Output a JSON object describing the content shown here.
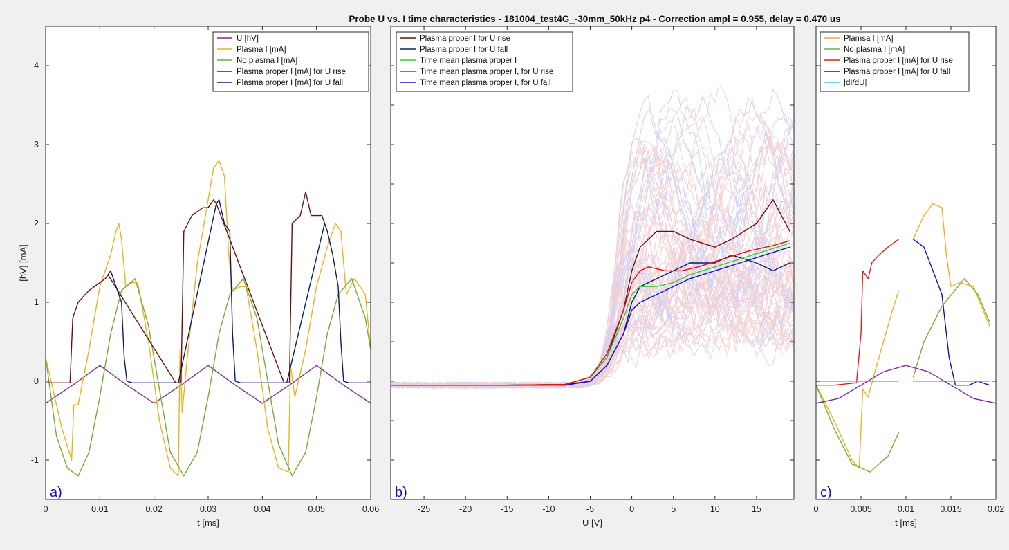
{
  "figure": {
    "title": "Probe U vs. I time characteristics - 181004_test4G_-30mm_50kHz p4 - Correction ampl = 0.955, delay = 0.470 us"
  },
  "chart_data": [
    {
      "panel_label": "a)",
      "type": "line",
      "xlabel": "t [ms]",
      "ylabel": "[hV] [mA]",
      "xlim": [
        0,
        0.06
      ],
      "ylim": [
        -1.5,
        4.5
      ],
      "xticks": [
        "0",
        "0.01",
        "0.02",
        "0.03",
        "0.04",
        "0.05",
        "0.06"
      ],
      "yticks": [
        "-1",
        "0",
        "1",
        "2",
        "3",
        "4"
      ],
      "legend_placement": "top-right",
      "grid": false,
      "series": [
        {
          "name": "U [hV]",
          "color": "#7e2f8e",
          "x": [
            0,
            0.005,
            0.01,
            0.015,
            0.02,
            0.025,
            0.03,
            0.035,
            0.04,
            0.045,
            0.05,
            0.055,
            0.06
          ],
          "y": [
            -0.28,
            -0.05,
            0.2,
            -0.05,
            -0.28,
            -0.05,
            0.2,
            -0.05,
            -0.28,
            -0.05,
            0.2,
            -0.05,
            -0.28
          ]
        },
        {
          "name": "Plasma I [mA]",
          "color": "#edb120",
          "x": [
            0,
            0.003,
            0.0048,
            0.0052,
            0.006,
            0.008,
            0.01,
            0.012,
            0.013,
            0.0135,
            0.014,
            0.0148,
            0.016,
            0.017,
            0.019,
            0.021,
            0.023,
            0.0245,
            0.0248,
            0.0252,
            0.026,
            0.028,
            0.03,
            0.031,
            0.032,
            0.033,
            0.0338,
            0.0345,
            0.036,
            0.037,
            0.039,
            0.041,
            0.043,
            0.0448,
            0.0452,
            0.046,
            0.048,
            0.05,
            0.052,
            0.0535,
            0.0545,
            0.0555,
            0.057,
            0.059,
            0.06
          ],
          "y": [
            0.3,
            -0.6,
            -1.0,
            -0.3,
            -0.3,
            0.4,
            1.2,
            1.6,
            1.9,
            2.0,
            1.8,
            1.2,
            1.25,
            1.25,
            0.5,
            -0.5,
            -1.1,
            -1.2,
            0.4,
            -0.4,
            0.2,
            1.5,
            2.3,
            2.7,
            2.8,
            2.6,
            1.6,
            1.15,
            1.2,
            1.2,
            0.4,
            -0.6,
            -1.1,
            -1.15,
            0.2,
            -0.2,
            0.4,
            1.2,
            1.7,
            2.0,
            1.9,
            1.1,
            1.3,
            1.1,
            0.4
          ]
        },
        {
          "name": "No plasma I [mA]",
          "color": "#77ac30",
          "x": [
            0,
            0.002,
            0.004,
            0.006,
            0.008,
            0.01,
            0.012,
            0.014,
            0.0165,
            0.019,
            0.021,
            0.023,
            0.0255,
            0.028,
            0.03,
            0.032,
            0.034,
            0.0365,
            0.039,
            0.041,
            0.043,
            0.0455,
            0.048,
            0.05,
            0.052,
            0.054,
            0.0565,
            0.059,
            0.06
          ],
          "y": [
            0.3,
            -0.7,
            -1.1,
            -1.2,
            -0.9,
            -0.2,
            0.6,
            1.15,
            1.3,
            0.7,
            -0.1,
            -0.9,
            -1.2,
            -0.9,
            -0.2,
            0.6,
            1.1,
            1.3,
            0.8,
            0.0,
            -0.8,
            -1.2,
            -0.9,
            -0.2,
            0.6,
            1.1,
            1.3,
            0.8,
            0.4
          ]
        },
        {
          "name": "Plasma proper I [mA] for U rise",
          "color": "#6b0e0e",
          "x": [
            0,
            0.0045,
            0.005,
            0.006,
            0.008,
            0.01,
            0.011,
            0.0115,
            0.024,
            0.025,
            0.0255,
            0.027,
            0.029,
            0.03,
            0.031,
            0.0315,
            0.044,
            0.045,
            0.0455,
            0.047,
            0.048,
            0.049,
            0.05,
            0.051,
            0.0515
          ],
          "y": [
            -0.02,
            -0.02,
            0.8,
            1.0,
            1.15,
            1.25,
            1.3,
            1.35,
            -0.02,
            -0.02,
            1.9,
            2.1,
            2.2,
            2.2,
            2.3,
            2.25,
            -0.02,
            -0.02,
            2.0,
            2.1,
            2.4,
            2.1,
            2.1,
            2.1,
            2.0
          ]
        },
        {
          "name": "Plasma proper I [mA] for U fall",
          "color": "#0c1a6b",
          "x": [
            0.0115,
            0.012,
            0.013,
            0.014,
            0.0145,
            0.015,
            0.016,
            0.0245,
            0.0315,
            0.032,
            0.033,
            0.034,
            0.0345,
            0.035,
            0.036,
            0.0445,
            0.0515,
            0.052,
            0.053,
            0.054,
            0.0545,
            0.055,
            0.056,
            0.06
          ],
          "y": [
            1.35,
            1.4,
            1.2,
            1.0,
            0.3,
            0.0,
            -0.02,
            -0.02,
            2.25,
            2.3,
            2.0,
            1.9,
            0.6,
            0.0,
            -0.02,
            -0.02,
            2.0,
            1.9,
            1.6,
            1.2,
            0.5,
            0.0,
            -0.02,
            -0.02
          ]
        }
      ]
    },
    {
      "panel_label": "b)",
      "type": "line",
      "xlabel": "U [V]",
      "ylabel": "",
      "xlim": [
        -29,
        19.5
      ],
      "ylim": [
        -1.5,
        4.5
      ],
      "xticks": [
        "-25",
        "-20",
        "-15",
        "-10",
        "-5",
        "0",
        "5",
        "10",
        "15"
      ],
      "yticks": [],
      "legend_placement": "top-left",
      "grid": false,
      "series": [
        {
          "name": "Plasma proper I for U rise",
          "color": "#6b0e0e",
          "x": [
            -29,
            -15,
            -8,
            -5,
            -3,
            -1,
            0,
            1,
            3,
            5,
            7,
            10,
            12,
            15,
            17,
            19
          ],
          "y": [
            -0.05,
            -0.05,
            -0.04,
            0.05,
            0.3,
            0.9,
            1.4,
            1.7,
            1.9,
            1.9,
            1.8,
            1.7,
            1.8,
            2.0,
            2.3,
            1.9
          ]
        },
        {
          "name": "Plasma proper I for U fall",
          "color": "#0c1a6b",
          "x": [
            -29,
            -15,
            -8,
            -5,
            -3,
            -1,
            0,
            1,
            3,
            5,
            7,
            10,
            12,
            15,
            17,
            19
          ],
          "y": [
            -0.05,
            -0.05,
            -0.04,
            0.0,
            0.2,
            0.6,
            1.0,
            1.2,
            1.3,
            1.4,
            1.5,
            1.5,
            1.6,
            1.5,
            1.4,
            1.5
          ]
        },
        {
          "name": "Time mean plasma proper I",
          "color": "#33cc33",
          "x": [
            -29,
            -15,
            -8,
            -5,
            -3,
            -1,
            0,
            1,
            3,
            5,
            7,
            10,
            13,
            16,
            19
          ],
          "y": [
            -0.05,
            -0.05,
            -0.04,
            0.05,
            0.3,
            0.8,
            1.1,
            1.2,
            1.2,
            1.25,
            1.35,
            1.45,
            1.55,
            1.65,
            1.75
          ]
        },
        {
          "name": "Time mean plasma proper I, for U rise",
          "color": "#e01010",
          "x": [
            -29,
            -15,
            -8,
            -5,
            -3,
            -1,
            0,
            1,
            2,
            4,
            6,
            8,
            11,
            14,
            17,
            19
          ],
          "y": [
            -0.05,
            -0.05,
            -0.04,
            0.05,
            0.35,
            0.9,
            1.25,
            1.4,
            1.45,
            1.4,
            1.4,
            1.45,
            1.55,
            1.65,
            1.72,
            1.78
          ]
        },
        {
          "name": "Time mean plasma proper I, for U fall",
          "color": "#1010d0",
          "x": [
            -29,
            -15,
            -8,
            -5,
            -3,
            -1,
            0,
            1,
            3,
            5,
            7,
            10,
            13,
            16,
            19
          ],
          "y": [
            -0.05,
            -0.05,
            -0.05,
            0.0,
            0.2,
            0.6,
            0.9,
            1.0,
            1.1,
            1.2,
            1.3,
            1.4,
            1.5,
            1.6,
            1.7
          ]
        }
      ]
    },
    {
      "panel_label": "c)",
      "type": "line",
      "xlabel": "t [ms]",
      "ylabel": "",
      "xlim": [
        0,
        0.02
      ],
      "ylim": [
        -1.5,
        4.5
      ],
      "xticks": [
        "0",
        "0.005",
        "0.01",
        "0.015",
        "0.02"
      ],
      "yticks": [],
      "legend_placement": "top-left",
      "grid": false,
      "series": [
        {
          "name": "Plamsa I [mA]",
          "color": "#edb120",
          "x": [
            0,
            0.002,
            0.004,
            0.0048,
            0.0052,
            0.0058,
            0.0065,
            0.0075,
            0.0085,
            0.0092,
            null,
            0.0108,
            0.012,
            0.013,
            0.014,
            0.0145,
            0.015,
            0.016,
            0.0175,
            0.0193
          ],
          "y": [
            -0.05,
            -0.5,
            -1.0,
            -1.1,
            -0.1,
            -0.2,
            0.1,
            0.5,
            0.9,
            1.15,
            null,
            1.8,
            2.1,
            2.25,
            2.2,
            1.6,
            1.2,
            1.25,
            1.2,
            0.7
          ]
        },
        {
          "name": "No plasma I [mA]",
          "color": "#77ac30",
          "x": [
            0,
            0.002,
            0.004,
            0.006,
            0.008,
            0.0092,
            null,
            0.0108,
            0.012,
            0.014,
            0.0165,
            0.018,
            0.0193
          ],
          "y": [
            -0.05,
            -0.6,
            -1.05,
            -1.15,
            -0.95,
            -0.65,
            null,
            0.05,
            0.5,
            0.95,
            1.3,
            1.1,
            0.75
          ]
        },
        {
          "name": "Plasma proper I [mA] for U rise",
          "color": "#dd1c1c",
          "x": [
            0,
            0.002,
            0.0045,
            0.005,
            0.0052,
            0.0058,
            0.0062,
            0.007,
            0.008,
            0.0092
          ],
          "y": [
            -0.05,
            -0.05,
            -0.02,
            0.6,
            1.4,
            1.3,
            1.5,
            1.6,
            1.7,
            1.8
          ]
        },
        {
          "name": "Plasma proper I [mA] for U fall",
          "color": "#1010b0",
          "x": [
            0.0108,
            0.012,
            0.013,
            0.014,
            0.0148,
            0.0155,
            0.017,
            0.018,
            0.0193
          ],
          "y": [
            1.8,
            1.7,
            1.4,
            1.1,
            0.3,
            -0.05,
            -0.05,
            0.0,
            -0.05
          ]
        },
        {
          "name": "|dI/dU|",
          "color": "#4dbeee",
          "x": [
            0,
            0.0092,
            null,
            0.0108,
            0.0193
          ],
          "y": [
            0,
            0,
            null,
            0,
            0
          ]
        },
        {
          "name": "U [hV]",
          "color": "#7e2f8e",
          "x": [
            0,
            0.0025,
            0.005,
            0.0075,
            0.01,
            0.0125,
            0.015,
            0.0175,
            0.02
          ],
          "y": [
            -0.28,
            -0.22,
            -0.05,
            0.12,
            0.2,
            0.12,
            -0.05,
            -0.22,
            -0.28
          ]
        }
      ]
    }
  ]
}
